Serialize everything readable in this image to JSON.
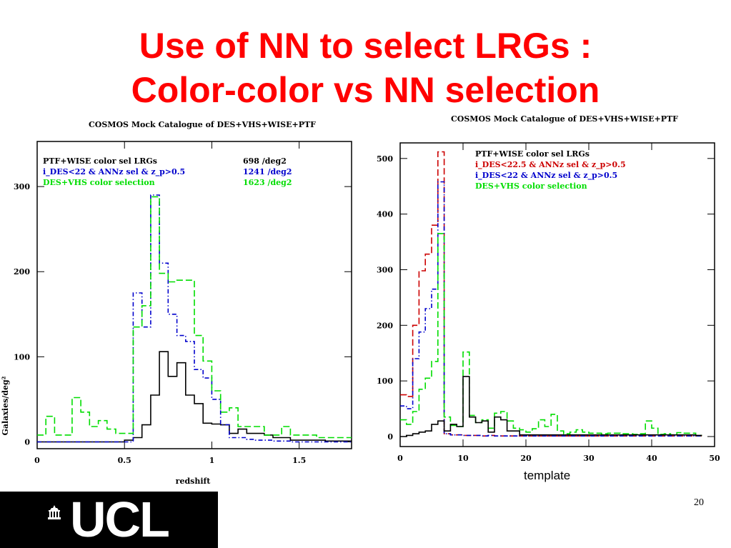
{
  "slide": {
    "title_line1": "Use of NN to select LRGs :",
    "title_line2": "Color-color vs NN selection",
    "page_number": "20",
    "logo_text": "UCL"
  },
  "colors": {
    "title": "#ff0000",
    "black": "#000000",
    "blue": "#0000cc",
    "green": "#00dd00",
    "red": "#cc0000"
  },
  "chart_data": [
    {
      "type": "histogram",
      "title": "COSMOS Mock Catalogue of DES+VHS+WISE+PTF",
      "xlabel": "redshift",
      "ylabel": "Galaxies/deg²",
      "xlim": [
        0,
        1.8
      ],
      "ylim": [
        -8,
        353
      ],
      "x_ticks": [
        0,
        0.5,
        1,
        1.5
      ],
      "x_tick_labels": [
        "0",
        "0.5",
        "1",
        "1.5"
      ],
      "y_ticks": [
        0,
        100,
        200,
        300
      ],
      "y_tick_labels": [
        "0",
        "100",
        "200",
        "300"
      ],
      "bin_edges": [
        0,
        0.05,
        0.1,
        0.15,
        0.2,
        0.25,
        0.3,
        0.35,
        0.4,
        0.45,
        0.5,
        0.55,
        0.6,
        0.65,
        0.7,
        0.75,
        0.8,
        0.85,
        0.9,
        0.95,
        1.0,
        1.05,
        1.1,
        1.15,
        1.2,
        1.25,
        1.3,
        1.35,
        1.4,
        1.45,
        1.5,
        1.55,
        1.6,
        1.65,
        1.7,
        1.75,
        1.8
      ],
      "series": [
        {
          "name": "PTF+WISE color sel LRGs",
          "density": "698 /deg2",
          "color": "#000000",
          "dash": "solid",
          "values": [
            0,
            0,
            0,
            0,
            0,
            0,
            0,
            0,
            0,
            0,
            2,
            5,
            20,
            55,
            106,
            77,
            93,
            55,
            45,
            22,
            21,
            20,
            10,
            15,
            10,
            10,
            8,
            5,
            5,
            2,
            2,
            2,
            2,
            1,
            1,
            1
          ]
        },
        {
          "name": "i_DES<22 & ANNz sel & z_p>0.5",
          "density": "1241 /deg2",
          "color": "#0000cc",
          "dash": "dashdot",
          "values": [
            0,
            0,
            0,
            0,
            0,
            0,
            0,
            0,
            0,
            0,
            0,
            175,
            135,
            290,
            210,
            150,
            125,
            118,
            85,
            75,
            50,
            20,
            5,
            5,
            3,
            2,
            2,
            1,
            1,
            0,
            0,
            0,
            0,
            0,
            0,
            0
          ]
        },
        {
          "name": "DES+VHS color selection",
          "density": "1623 /deg2",
          "color": "#00dd00",
          "dash": "dashed",
          "values": [
            8,
            30,
            8,
            8,
            52,
            35,
            18,
            25,
            15,
            10,
            10,
            135,
            160,
            288,
            198,
            188,
            190,
            190,
            125,
            95,
            60,
            35,
            40,
            18,
            18,
            18,
            8,
            8,
            18,
            8,
            8,
            8,
            5,
            5,
            5,
            5
          ]
        }
      ]
    },
    {
      "type": "histogram",
      "title": "COSMOS Mock Catalogue of DES+VHS+WISE+PTF",
      "xlabel": "template",
      "ylabel": "",
      "xlim": [
        0,
        50
      ],
      "ylim": [
        -18,
        528
      ],
      "x_ticks": [
        0,
        10,
        20,
        30,
        40,
        50
      ],
      "x_tick_labels": [
        "0",
        "10",
        "20",
        "30",
        "40",
        "50"
      ],
      "y_ticks": [
        0,
        100,
        200,
        300,
        400,
        500
      ],
      "y_tick_labels": [
        "0",
        "100",
        "200",
        "300",
        "400",
        "500"
      ],
      "bin_edges": [
        0,
        1,
        2,
        3,
        4,
        5,
        6,
        7,
        8,
        9,
        10,
        11,
        12,
        13,
        14,
        15,
        16,
        17,
        18,
        19,
        20,
        21,
        22,
        23,
        24,
        25,
        26,
        27,
        28,
        29,
        30,
        31,
        32,
        33,
        34,
        35,
        36,
        37,
        38,
        39,
        40,
        41,
        42,
        43,
        44,
        45,
        46,
        47,
        48
      ],
      "series": [
        {
          "name": "i_DES<22.5 & ANNz sel & z_p>0.5",
          "color": "#cc0000",
          "dash": "dashed",
          "values": [
            75,
            72,
            200,
            298,
            328,
            380,
            512,
            5,
            3,
            3,
            2,
            2,
            2,
            1,
            2,
            1,
            1,
            1,
            1,
            1,
            1,
            1,
            1,
            1,
            1,
            1,
            1,
            1,
            1,
            1,
            1,
            1,
            1,
            1,
            1,
            1,
            1,
            1,
            1,
            1,
            1,
            1,
            1,
            1,
            1,
            1,
            1,
            1
          ]
        },
        {
          "name": "i_DES<22 & ANNz sel & z_p>0.5",
          "color": "#0000cc",
          "dash": "dashdot",
          "values": [
            55,
            50,
            140,
            188,
            230,
            265,
            458,
            5,
            3,
            3,
            2,
            2,
            2,
            1,
            2,
            1,
            1,
            1,
            1,
            1,
            1,
            1,
            1,
            1,
            1,
            1,
            1,
            1,
            1,
            1,
            1,
            1,
            1,
            1,
            1,
            1,
            1,
            1,
            1,
            1,
            1,
            1,
            1,
            1,
            1,
            1,
            1,
            1
          ]
        },
        {
          "name": "DES+VHS color selection",
          "color": "#00dd00",
          "dash": "dashed",
          "values": [
            30,
            22,
            45,
            85,
            105,
            135,
            365,
            35,
            20,
            18,
            152,
            38,
            25,
            30,
            15,
            42,
            45,
            28,
            15,
            12,
            8,
            14,
            30,
            18,
            40,
            10,
            5,
            8,
            12,
            8,
            6,
            6,
            5,
            6,
            6,
            5,
            5,
            4,
            5,
            28,
            15,
            4,
            5,
            3,
            7,
            6,
            6,
            2
          ]
        },
        {
          "name": "PTF+WISE color sel LRGs",
          "color": "#000000",
          "dash": "solid",
          "values": [
            0,
            2,
            5,
            8,
            10,
            22,
            28,
            10,
            22,
            18,
            108,
            35,
            25,
            28,
            8,
            35,
            30,
            10,
            10,
            3,
            3,
            3,
            3,
            3,
            3,
            3,
            3,
            3,
            3,
            3,
            3,
            3,
            3,
            3,
            3,
            3,
            3,
            3,
            3,
            3,
            3,
            3,
            3,
            3,
            3,
            3,
            3,
            2
          ]
        }
      ]
    }
  ]
}
